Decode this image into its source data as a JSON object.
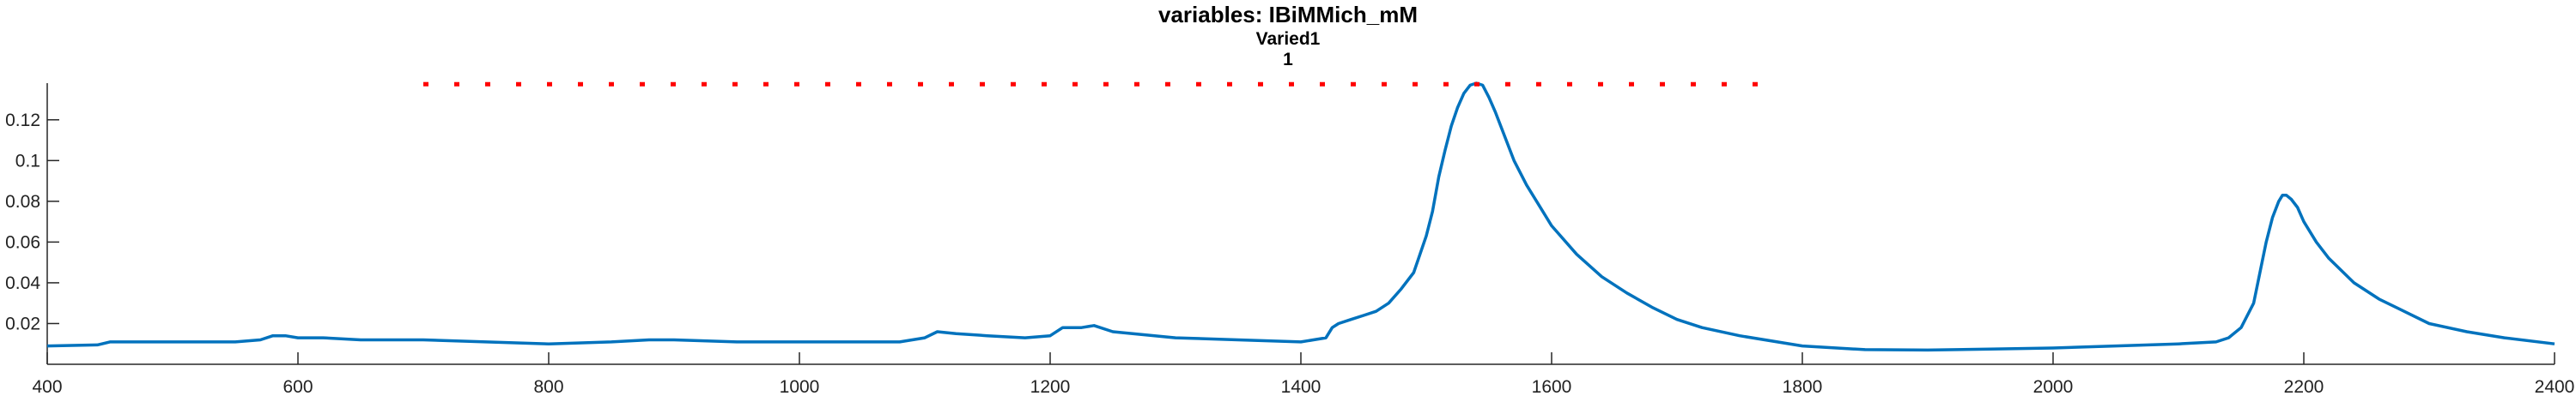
{
  "chart_data": {
    "type": "line",
    "title": "variables: IBiMMich_mM",
    "subtitle_lines": [
      "Varied1",
      "1"
    ],
    "xlabel": "",
    "ylabel": "",
    "xlim": [
      400,
      2400
    ],
    "ylim": [
      0,
      0.138
    ],
    "xticks": [
      400,
      600,
      800,
      1000,
      1200,
      1400,
      1600,
      1800,
      2000,
      2200,
      2400
    ],
    "yticks": [
      0.02,
      0.04,
      0.06,
      0.08,
      0.1,
      0.12
    ],
    "ytick_labels": [
      "0.02",
      "0.04",
      "0.06",
      "0.08",
      "0.1",
      "0.12"
    ],
    "grid": false,
    "series": [
      {
        "color": "#0072BD",
        "style": "solid",
        "x": [
          400,
          440,
          450,
          500,
          550,
          570,
          580,
          590,
          600,
          620,
          650,
          700,
          750,
          800,
          850,
          880,
          900,
          950,
          1000,
          1050,
          1080,
          1100,
          1110,
          1125,
          1150,
          1180,
          1200,
          1210,
          1225,
          1235,
          1250,
          1300,
          1350,
          1400,
          1410,
          1420,
          1425,
          1430,
          1440,
          1450,
          1460,
          1470,
          1480,
          1490,
          1500,
          1505,
          1510,
          1515,
          1520,
          1525,
          1530,
          1535,
          1540,
          1545,
          1550,
          1555,
          1560,
          1570,
          1580,
          1590,
          1600,
          1620,
          1640,
          1660,
          1680,
          1700,
          1720,
          1750,
          1800,
          1850,
          1900,
          1950,
          2000,
          2050,
          2100,
          2130,
          2140,
          2150,
          2160,
          2165,
          2170,
          2175,
          2180,
          2183,
          2186,
          2190,
          2195,
          2200,
          2210,
          2220,
          2240,
          2260,
          2280,
          2300,
          2330,
          2360,
          2400
        ],
        "y": [
          0.009,
          0.0095,
          0.011,
          0.011,
          0.011,
          0.012,
          0.014,
          0.014,
          0.013,
          0.013,
          0.012,
          0.012,
          0.011,
          0.01,
          0.011,
          0.012,
          0.012,
          0.011,
          0.011,
          0.011,
          0.011,
          0.013,
          0.016,
          0.015,
          0.014,
          0.013,
          0.014,
          0.018,
          0.018,
          0.019,
          0.016,
          0.013,
          0.012,
          0.011,
          0.012,
          0.013,
          0.018,
          0.02,
          0.022,
          0.024,
          0.026,
          0.03,
          0.037,
          0.045,
          0.063,
          0.075,
          0.092,
          0.105,
          0.117,
          0.126,
          0.133,
          0.137,
          0.138,
          0.137,
          0.131,
          0.124,
          0.116,
          0.1,
          0.088,
          0.078,
          0.068,
          0.054,
          0.043,
          0.035,
          0.028,
          0.022,
          0.018,
          0.014,
          0.009,
          0.0072,
          0.007,
          0.0075,
          0.008,
          0.009,
          0.01,
          0.011,
          0.013,
          0.018,
          0.03,
          0.045,
          0.06,
          0.072,
          0.08,
          0.083,
          0.083,
          0.081,
          0.077,
          0.07,
          0.06,
          0.052,
          0.04,
          0.032,
          0.026,
          0.02,
          0.016,
          0.013,
          0.01
        ]
      },
      {
        "color": "#FF0000",
        "style": "dotted",
        "x": [
          700,
          1780
        ],
        "y": [
          0.1375,
          0.1375
        ]
      }
    ]
  }
}
